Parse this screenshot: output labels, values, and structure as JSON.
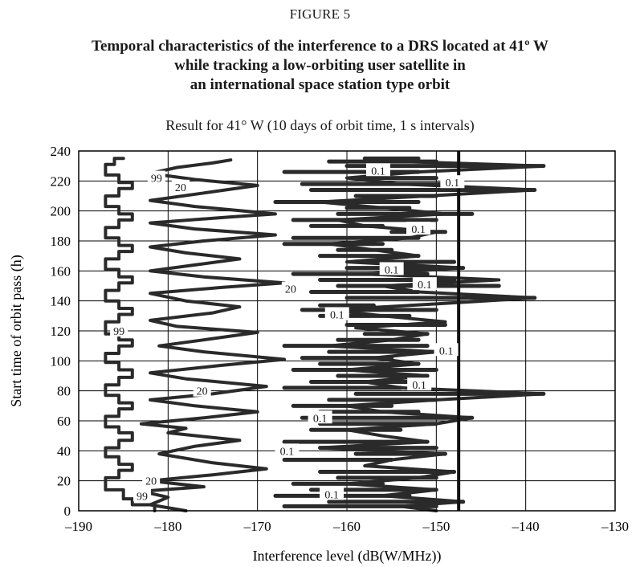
{
  "figure": {
    "label": "FIGURE 5",
    "title_lines": [
      "Temporal characteristics of the interference to a DRS located at 41º W",
      "while tracking a low-orbiting user satellite in",
      "an international space station type orbit"
    ]
  },
  "chart_data": {
    "type": "line",
    "title": "Result for 41° W (10 days of orbit time, 1 s intervals)",
    "xlabel": "Interference level (dB(W/MHz))",
    "ylabel": "Start time of orbit pass (h)",
    "xlim": [
      -190,
      -130
    ],
    "ylim": [
      0,
      240
    ],
    "xticks": [
      -190,
      -180,
      -170,
      -160,
      -150,
      -140,
      -130
    ],
    "xtick_labels": [
      "–190",
      "–180",
      "–170",
      "–160",
      "–150",
      "–140",
      "–130"
    ],
    "yticks": [
      0,
      20,
      40,
      60,
      80,
      100,
      120,
      140,
      160,
      180,
      200,
      220,
      240
    ],
    "ytick_labels": [
      "0",
      "20",
      "40",
      "60",
      "80",
      "100",
      "120",
      "140",
      "160",
      "180",
      "200",
      "220",
      "240"
    ],
    "grid": true,
    "reference_line": {
      "x": -147.5
    },
    "series": [
      {
        "name": "99",
        "points": [
          [
            -181.5,
            0
          ],
          [
            -181.5,
            4
          ],
          [
            -184,
            4
          ],
          [
            -184,
            8
          ],
          [
            -185,
            8
          ],
          [
            -185,
            14
          ],
          [
            -187,
            14
          ],
          [
            -187,
            22
          ],
          [
            -185.5,
            22
          ],
          [
            -185.5,
            27
          ],
          [
            -184,
            27
          ],
          [
            -184,
            31
          ],
          [
            -185.5,
            31
          ],
          [
            -185.5,
            36
          ],
          [
            -187,
            36
          ],
          [
            -187,
            42
          ],
          [
            -185.5,
            42
          ],
          [
            -185.5,
            47
          ],
          [
            -184,
            47
          ],
          [
            -184,
            52
          ],
          [
            -185.5,
            52
          ],
          [
            -185.5,
            56
          ],
          [
            -187,
            56
          ],
          [
            -187,
            63
          ],
          [
            -185.5,
            63
          ],
          [
            -185.5,
            68
          ],
          [
            -184,
            68
          ],
          [
            -184,
            72
          ],
          [
            -185.5,
            72
          ],
          [
            -185.5,
            77
          ],
          [
            -187,
            77
          ],
          [
            -187,
            84
          ],
          [
            -185.5,
            84
          ],
          [
            -185.5,
            89
          ],
          [
            -184,
            89
          ],
          [
            -184,
            94
          ],
          [
            -185.5,
            94
          ],
          [
            -185.5,
            99
          ],
          [
            -187,
            99
          ],
          [
            -187,
            105
          ],
          [
            -185.5,
            105
          ],
          [
            -185.5,
            110
          ],
          [
            -184,
            110
          ],
          [
            -184,
            114
          ],
          [
            -185.5,
            114
          ],
          [
            -185.5,
            118
          ],
          [
            -187,
            118
          ],
          [
            -187,
            126
          ],
          [
            -185.5,
            126
          ],
          [
            -185.5,
            131
          ],
          [
            -184,
            131
          ],
          [
            -184,
            135
          ],
          [
            -185.5,
            135
          ],
          [
            -185.5,
            140
          ],
          [
            -187,
            140
          ],
          [
            -187,
            147
          ],
          [
            -185.5,
            147
          ],
          [
            -185.5,
            152
          ],
          [
            -184,
            152
          ],
          [
            -184,
            156
          ],
          [
            -185.5,
            156
          ],
          [
            -185.5,
            161
          ],
          [
            -187,
            161
          ],
          [
            -187,
            168
          ],
          [
            -185.5,
            168
          ],
          [
            -185.5,
            173
          ],
          [
            -184,
            173
          ],
          [
            -184,
            177
          ],
          [
            -185.5,
            177
          ],
          [
            -185.5,
            182
          ],
          [
            -187,
            182
          ],
          [
            -187,
            189
          ],
          [
            -185.5,
            189
          ],
          [
            -185.5,
            194
          ],
          [
            -184,
            194
          ],
          [
            -184,
            198
          ],
          [
            -185.5,
            198
          ],
          [
            -185.5,
            203
          ],
          [
            -187,
            203
          ],
          [
            -187,
            210
          ],
          [
            -185.5,
            210
          ],
          [
            -185.5,
            215
          ],
          [
            -184,
            215
          ],
          [
            -184,
            219
          ],
          [
            -185.5,
            219
          ],
          [
            -185.5,
            224
          ],
          [
            -187,
            224
          ],
          [
            -187,
            231
          ],
          [
            -186,
            231
          ],
          [
            -186,
            235
          ],
          [
            -185,
            235
          ]
        ]
      },
      {
        "name": "20",
        "points": [
          [
            -178,
            0
          ],
          [
            -182,
            4
          ],
          [
            -180,
            9
          ],
          [
            -183,
            13
          ],
          [
            -176,
            16
          ],
          [
            -182,
            20
          ],
          [
            -175,
            24
          ],
          [
            -169,
            28
          ],
          [
            -175,
            32
          ],
          [
            -181,
            38
          ],
          [
            -177,
            43
          ],
          [
            -172,
            47
          ],
          [
            -180,
            52
          ],
          [
            -178,
            55
          ],
          [
            -183,
            58
          ],
          [
            -176,
            62
          ],
          [
            -170,
            66
          ],
          [
            -177,
            70
          ],
          [
            -182,
            74
          ],
          [
            -175,
            78
          ],
          [
            -169,
            83
          ],
          [
            -178,
            88
          ],
          [
            -182,
            92
          ],
          [
            -174,
            97
          ],
          [
            -167,
            101
          ],
          [
            -176,
            106
          ],
          [
            -181,
            110
          ],
          [
            -176,
            114
          ],
          [
            -170,
            119
          ],
          [
            -179,
            123
          ],
          [
            -182,
            127
          ],
          [
            -175,
            132
          ],
          [
            -172,
            136
          ],
          [
            -178,
            140
          ],
          [
            -182,
            145
          ],
          [
            -174,
            149
          ],
          [
            -167,
            152
          ],
          [
            -176,
            156
          ],
          [
            -182,
            160
          ],
          [
            -177,
            164
          ],
          [
            -172,
            168
          ],
          [
            -178,
            172
          ],
          [
            -182,
            176
          ],
          [
            -176,
            180
          ],
          [
            -168,
            184
          ],
          [
            -177,
            188
          ],
          [
            -182,
            192
          ],
          [
            -173,
            196
          ],
          [
            -168,
            198
          ],
          [
            -177,
            203
          ],
          [
            -182,
            207
          ],
          [
            -176,
            212
          ],
          [
            -170,
            217
          ],
          [
            -177,
            221
          ],
          [
            -182,
            225
          ],
          [
            -179,
            229
          ],
          [
            -175,
            232
          ],
          [
            -173,
            234
          ]
        ]
      },
      {
        "name": "0.1",
        "points": [
          [
            -150,
            0
          ],
          [
            -154,
            3
          ],
          [
            -147,
            6
          ],
          [
            -156,
            10
          ],
          [
            -150,
            14
          ],
          [
            -160,
            18
          ],
          [
            -152,
            22
          ],
          [
            -148,
            26
          ],
          [
            -158,
            30
          ],
          [
            -155,
            34
          ],
          [
            -149,
            38
          ],
          [
            -163,
            42
          ],
          [
            -151,
            46
          ],
          [
            -156,
            50
          ],
          [
            -160,
            54
          ],
          [
            -150,
            58
          ],
          [
            -146,
            62
          ],
          [
            -156,
            66
          ],
          [
            -160,
            70
          ],
          [
            -150,
            74
          ],
          [
            -138,
            78
          ],
          [
            -154,
            82
          ],
          [
            -158,
            86
          ],
          [
            -151,
            90
          ],
          [
            -160,
            94
          ],
          [
            -152,
            98
          ],
          [
            -157,
            102
          ],
          [
            -150,
            106
          ],
          [
            -162,
            110
          ],
          [
            -155,
            114
          ],
          [
            -151,
            118
          ],
          [
            -159,
            122
          ],
          [
            -149,
            126
          ],
          [
            -156,
            130
          ],
          [
            -162,
            134
          ],
          [
            -150,
            138
          ],
          [
            -139,
            142
          ],
          [
            -152,
            146
          ],
          [
            -156,
            150
          ],
          [
            -143,
            154
          ],
          [
            -158,
            158
          ],
          [
            -147,
            162
          ],
          [
            -160,
            166
          ],
          [
            -152,
            170
          ],
          [
            -157,
            174
          ],
          [
            -162,
            178
          ],
          [
            -153,
            182
          ],
          [
            -150,
            186
          ],
          [
            -158,
            190
          ],
          [
            -161,
            194
          ],
          [
            -149,
            198
          ],
          [
            -156,
            202
          ],
          [
            -163,
            206
          ],
          [
            -151,
            210
          ],
          [
            -139,
            214
          ],
          [
            -154,
            218
          ],
          [
            -160,
            222
          ],
          [
            -152,
            226
          ],
          [
            -138,
            230
          ],
          [
            -154,
            233
          ],
          [
            -158,
            235
          ]
        ]
      }
    ],
    "bands": [
      {
        "y": 3,
        "x1": -167,
        "x2": -150
      },
      {
        "y": 6,
        "x1": -162,
        "x2": -147
      },
      {
        "y": 10,
        "x1": -168,
        "x2": -153
      },
      {
        "y": 14,
        "x1": -164,
        "x2": -150
      },
      {
        "y": 18,
        "x1": -166,
        "x2": -156
      },
      {
        "y": 22,
        "x1": -161,
        "x2": -150
      },
      {
        "y": 26,
        "x1": -163,
        "x2": -148
      },
      {
        "y": 34,
        "x1": -167,
        "x2": -155
      },
      {
        "y": 38,
        "x1": -159,
        "x2": -149
      },
      {
        "y": 42,
        "x1": -163,
        "x2": -150
      },
      {
        "y": 46,
        "x1": -167,
        "x2": -151
      },
      {
        "y": 54,
        "x1": -164,
        "x2": -154
      },
      {
        "y": 58,
        "x1": -163,
        "x2": -150
      },
      {
        "y": 62,
        "x1": -165,
        "x2": -146
      },
      {
        "y": 66,
        "x1": -163,
        "x2": -152
      },
      {
        "y": 70,
        "x1": -166,
        "x2": -155
      },
      {
        "y": 74,
        "x1": -162,
        "x2": -150
      },
      {
        "y": 78,
        "x1": -159,
        "x2": -138
      },
      {
        "y": 82,
        "x1": -167,
        "x2": -154
      },
      {
        "y": 86,
        "x1": -164,
        "x2": -153
      },
      {
        "y": 90,
        "x1": -161,
        "x2": -151
      },
      {
        "y": 94,
        "x1": -166,
        "x2": -150
      },
      {
        "y": 98,
        "x1": -163,
        "x2": -152
      },
      {
        "y": 102,
        "x1": -165,
        "x2": -155
      },
      {
        "y": 106,
        "x1": -162,
        "x2": -150
      },
      {
        "y": 110,
        "x1": -167,
        "x2": -151
      },
      {
        "y": 114,
        "x1": -161,
        "x2": -152
      },
      {
        "y": 118,
        "x1": -158,
        "x2": -151
      },
      {
        "y": 124,
        "x1": -160,
        "x2": -149
      },
      {
        "y": 130,
        "x1": -163,
        "x2": -153
      },
      {
        "y": 134,
        "x1": -165,
        "x2": -150
      },
      {
        "y": 137,
        "x1": -163,
        "x2": -157
      },
      {
        "y": 142,
        "x1": -160,
        "x2": -139
      },
      {
        "y": 146,
        "x1": -164,
        "x2": -152
      },
      {
        "y": 150,
        "x1": -161,
        "x2": -143
      },
      {
        "y": 154,
        "x1": -163,
        "x2": -148
      },
      {
        "y": 158,
        "x1": -166,
        "x2": -151
      },
      {
        "y": 162,
        "x1": -160,
        "x2": -147
      },
      {
        "y": 166,
        "x1": -158,
        "x2": -148
      },
      {
        "y": 170,
        "x1": -163,
        "x2": -152
      },
      {
        "y": 174,
        "x1": -161,
        "x2": -155
      },
      {
        "y": 178,
        "x1": -167,
        "x2": -156
      },
      {
        "y": 182,
        "x1": -166,
        "x2": -152
      },
      {
        "y": 186,
        "x1": -155,
        "x2": -149
      },
      {
        "y": 190,
        "x1": -164,
        "x2": -156
      },
      {
        "y": 194,
        "x1": -166,
        "x2": -150
      },
      {
        "y": 198,
        "x1": -161,
        "x2": -146
      },
      {
        "y": 202,
        "x1": -160,
        "x2": -153
      },
      {
        "y": 206,
        "x1": -168,
        "x2": -152
      },
      {
        "y": 210,
        "x1": -159,
        "x2": -150
      },
      {
        "y": 214,
        "x1": -164,
        "x2": -139
      },
      {
        "y": 218,
        "x1": -165,
        "x2": -148
      },
      {
        "y": 222,
        "x1": -158,
        "x2": -150
      },
      {
        "y": 226,
        "x1": -167,
        "x2": -152
      },
      {
        "y": 230,
        "x1": -160,
        "x2": -138
      },
      {
        "y": 233,
        "x1": -162,
        "x2": -150
      },
      {
        "y": 235,
        "x1": -158,
        "x2": -152
      }
    ],
    "annotations": [
      {
        "text": "99",
        "x": -181.3,
        "y": 222
      },
      {
        "text": "20",
        "x": -178.6,
        "y": 216
      },
      {
        "text": "0.1",
        "x": -156.5,
        "y": 227
      },
      {
        "text": "0.1",
        "x": -148.2,
        "y": 219
      },
      {
        "text": "0.1",
        "x": -152,
        "y": 188
      },
      {
        "text": "0.1",
        "x": -155,
        "y": 161
      },
      {
        "text": "0.1",
        "x": -151.3,
        "y": 151
      },
      {
        "text": "20",
        "x": -166.3,
        "y": 148
      },
      {
        "text": "0.1",
        "x": -161.1,
        "y": 131
      },
      {
        "text": "99",
        "x": -185.5,
        "y": 120
      },
      {
        "text": "0.1",
        "x": -148.9,
        "y": 107
      },
      {
        "text": "0.1",
        "x": -151.9,
        "y": 84
      },
      {
        "text": "20",
        "x": -176.2,
        "y": 80
      },
      {
        "text": "0.1",
        "x": -163,
        "y": 62
      },
      {
        "text": "0.1",
        "x": -166.7,
        "y": 40
      },
      {
        "text": "20",
        "x": -181.9,
        "y": 20
      },
      {
        "text": "0.1",
        "x": -161.7,
        "y": 11
      },
      {
        "text": "99",
        "x": -182.9,
        "y": 10
      }
    ],
    "colors": {
      "line": "#2a2a2a",
      "grid": "#000000",
      "label_bg": "#ffffff"
    }
  }
}
